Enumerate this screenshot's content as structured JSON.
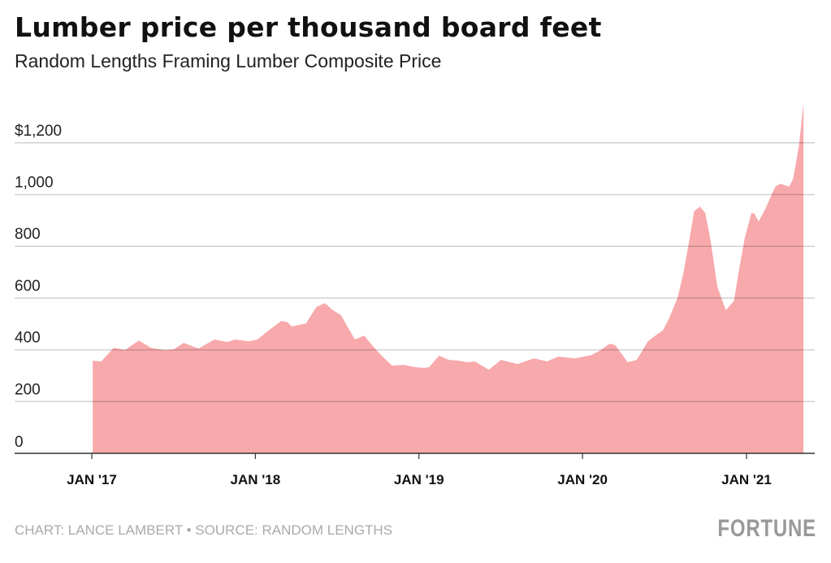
{
  "title": "Lumber price per thousand board feet",
  "subtitle": "Random Lengths Framing Lumber Composite Price",
  "footer": "CHART: LANCE LAMBERT • SOURCE: RANDOM LENGTHS",
  "logo": "FORTUNE",
  "chart_data": {
    "type": "area",
    "color": "#f7a9ab",
    "grid": true,
    "ylim": [
      0,
      1380
    ],
    "yticks": [
      0,
      200,
      400,
      600,
      800,
      1000,
      1200
    ],
    "ytick_labels": [
      "0",
      "200",
      "400",
      "600",
      "800",
      "1,000",
      "$1,200"
    ],
    "xticks": [
      "2017-01-01",
      "2018-01-01",
      "2019-01-01",
      "2020-01-01",
      "2021-01-01"
    ],
    "xtick_labels": [
      "JAN '17",
      "JAN '18",
      "JAN '19",
      "JAN '20",
      "JAN '21"
    ],
    "x": [
      "2017-01-03",
      "2017-01-22",
      "2017-02-19",
      "2017-03-16",
      "2017-04-16",
      "2017-05-13",
      "2017-06-12",
      "2017-07-03",
      "2017-07-25",
      "2017-08-27",
      "2017-10-02",
      "2017-10-30",
      "2017-11-17",
      "2017-12-18",
      "2018-01-06",
      "2018-01-30",
      "2018-02-28",
      "2018-03-14",
      "2018-03-23",
      "2018-04-24",
      "2018-05-17",
      "2018-06-05",
      "2018-06-23",
      "2018-07-11",
      "2018-08-11",
      "2018-09-01",
      "2018-09-22",
      "2018-10-10",
      "2018-11-02",
      "2018-11-29",
      "2018-12-22",
      "2019-01-13",
      "2019-01-24",
      "2019-02-15",
      "2019-03-09",
      "2019-03-31",
      "2019-04-18",
      "2019-05-06",
      "2019-06-06",
      "2019-07-03",
      "2019-08-09",
      "2019-09-15",
      "2019-10-14",
      "2019-11-08",
      "2019-12-15",
      "2020-01-21",
      "2020-02-08",
      "2020-03-02",
      "2020-03-14",
      "2020-04-11",
      "2020-05-01",
      "2020-05-26",
      "2020-06-14",
      "2020-06-28",
      "2020-07-12",
      "2020-07-31",
      "2020-08-13",
      "2020-08-26",
      "2020-09-06",
      "2020-09-19",
      "2020-10-01",
      "2020-10-12",
      "2020-10-28",
      "2020-11-16",
      "2020-12-04",
      "2020-12-15",
      "2020-12-28",
      "2021-01-12",
      "2021-01-19",
      "2021-01-28",
      "2021-02-12",
      "2021-03-06",
      "2021-03-18",
      "2021-04-06",
      "2021-04-15",
      "2021-04-28",
      "2021-05-08"
    ],
    "y": [
      358,
      355,
      408,
      399,
      436,
      408,
      399,
      402,
      427,
      405,
      440,
      430,
      440,
      433,
      440,
      474,
      512,
      506,
      490,
      502,
      565,
      581,
      553,
      534,
      440,
      455,
      411,
      377,
      339,
      342,
      333,
      330,
      333,
      377,
      361,
      358,
      352,
      355,
      323,
      361,
      345,
      367,
      355,
      374,
      367,
      380,
      396,
      424,
      418,
      352,
      361,
      433,
      458,
      474,
      521,
      600,
      694,
      820,
      936,
      954,
      929,
      832,
      644,
      553,
      590,
      706,
      832,
      929,
      926,
      895,
      945,
      1030,
      1042,
      1030,
      1061,
      1187,
      1353
    ]
  }
}
